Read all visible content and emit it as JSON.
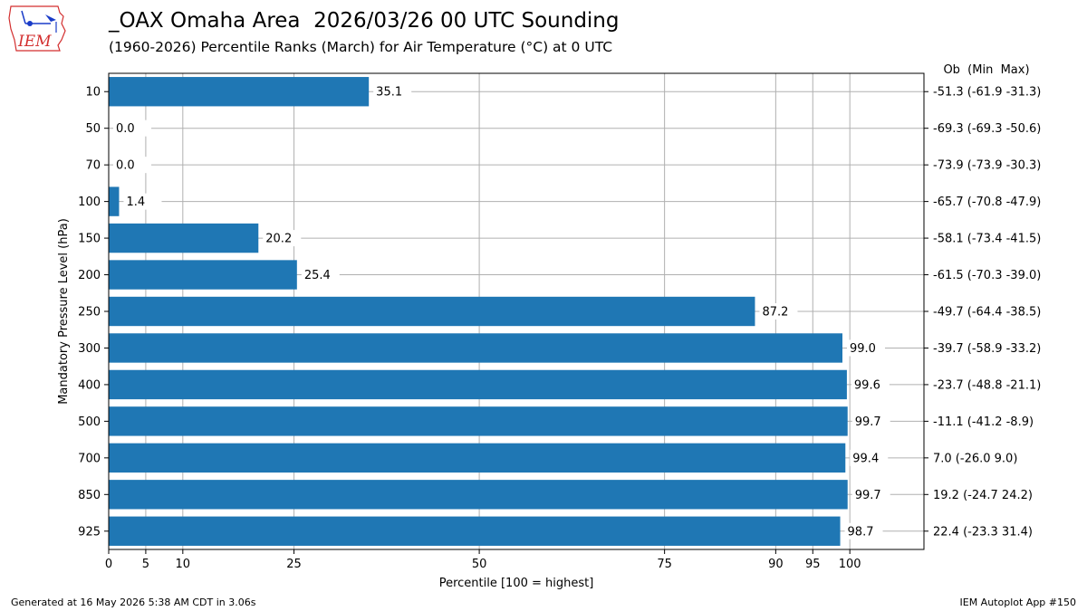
{
  "header": {
    "title": "_OAX Omaha Area  2026/03/26 00 UTC Sounding",
    "subtitle": "(1960-2026) Percentile Ranks (March) for Air Temperature (°C) at 0 UTC"
  },
  "logo": {
    "text": "IEM",
    "icon": "iem-logo-icon",
    "color": "#d32f2f"
  },
  "footer": {
    "left": "Generated at 16 May 2026 5:38 AM CDT in 3.06s",
    "right": "IEM Autoplot App #150"
  },
  "chart_data": {
    "type": "bar",
    "orientation": "horizontal",
    "bar_color": "#1f77b4",
    "grid": true,
    "xlabel": "Percentile [100 = highest]",
    "ylabel": "Mandatory Pressure Level (hPa)",
    "xlim": [
      0,
      110
    ],
    "xticks": [
      0,
      5,
      10,
      25,
      50,
      75,
      90,
      95,
      100
    ],
    "right_header": "Ob  (Min  Max)",
    "categories": [
      "10",
      "50",
      "70",
      "100",
      "150",
      "200",
      "250",
      "300",
      "400",
      "500",
      "700",
      "850",
      "925"
    ],
    "values": [
      35.1,
      0.0,
      0.0,
      1.4,
      20.2,
      25.4,
      87.2,
      99.0,
      99.6,
      99.7,
      99.4,
      99.7,
      98.7
    ],
    "value_labels": [
      "35.1",
      "0.0",
      "0.0",
      "1.4",
      "20.2",
      "25.4",
      "87.2",
      "99.0",
      "99.6",
      "99.7",
      "99.4",
      "99.7",
      "98.7"
    ],
    "right_labels": [
      "-51.3 (-61.9 -31.3)",
      "-69.3 (-69.3 -50.6)",
      "-73.9 (-73.9 -30.3)",
      "-65.7 (-70.8 -47.9)",
      "-58.1 (-73.4 -41.5)",
      "-61.5 (-70.3 -39.0)",
      "-49.7 (-64.4 -38.5)",
      "-39.7 (-58.9 -33.2)",
      "-23.7 (-48.8 -21.1)",
      "-11.1 (-41.2 -8.9)",
      "7.0 (-26.0 9.0)",
      "19.2 (-24.7 24.2)",
      "22.4 (-23.3 31.4)"
    ]
  }
}
